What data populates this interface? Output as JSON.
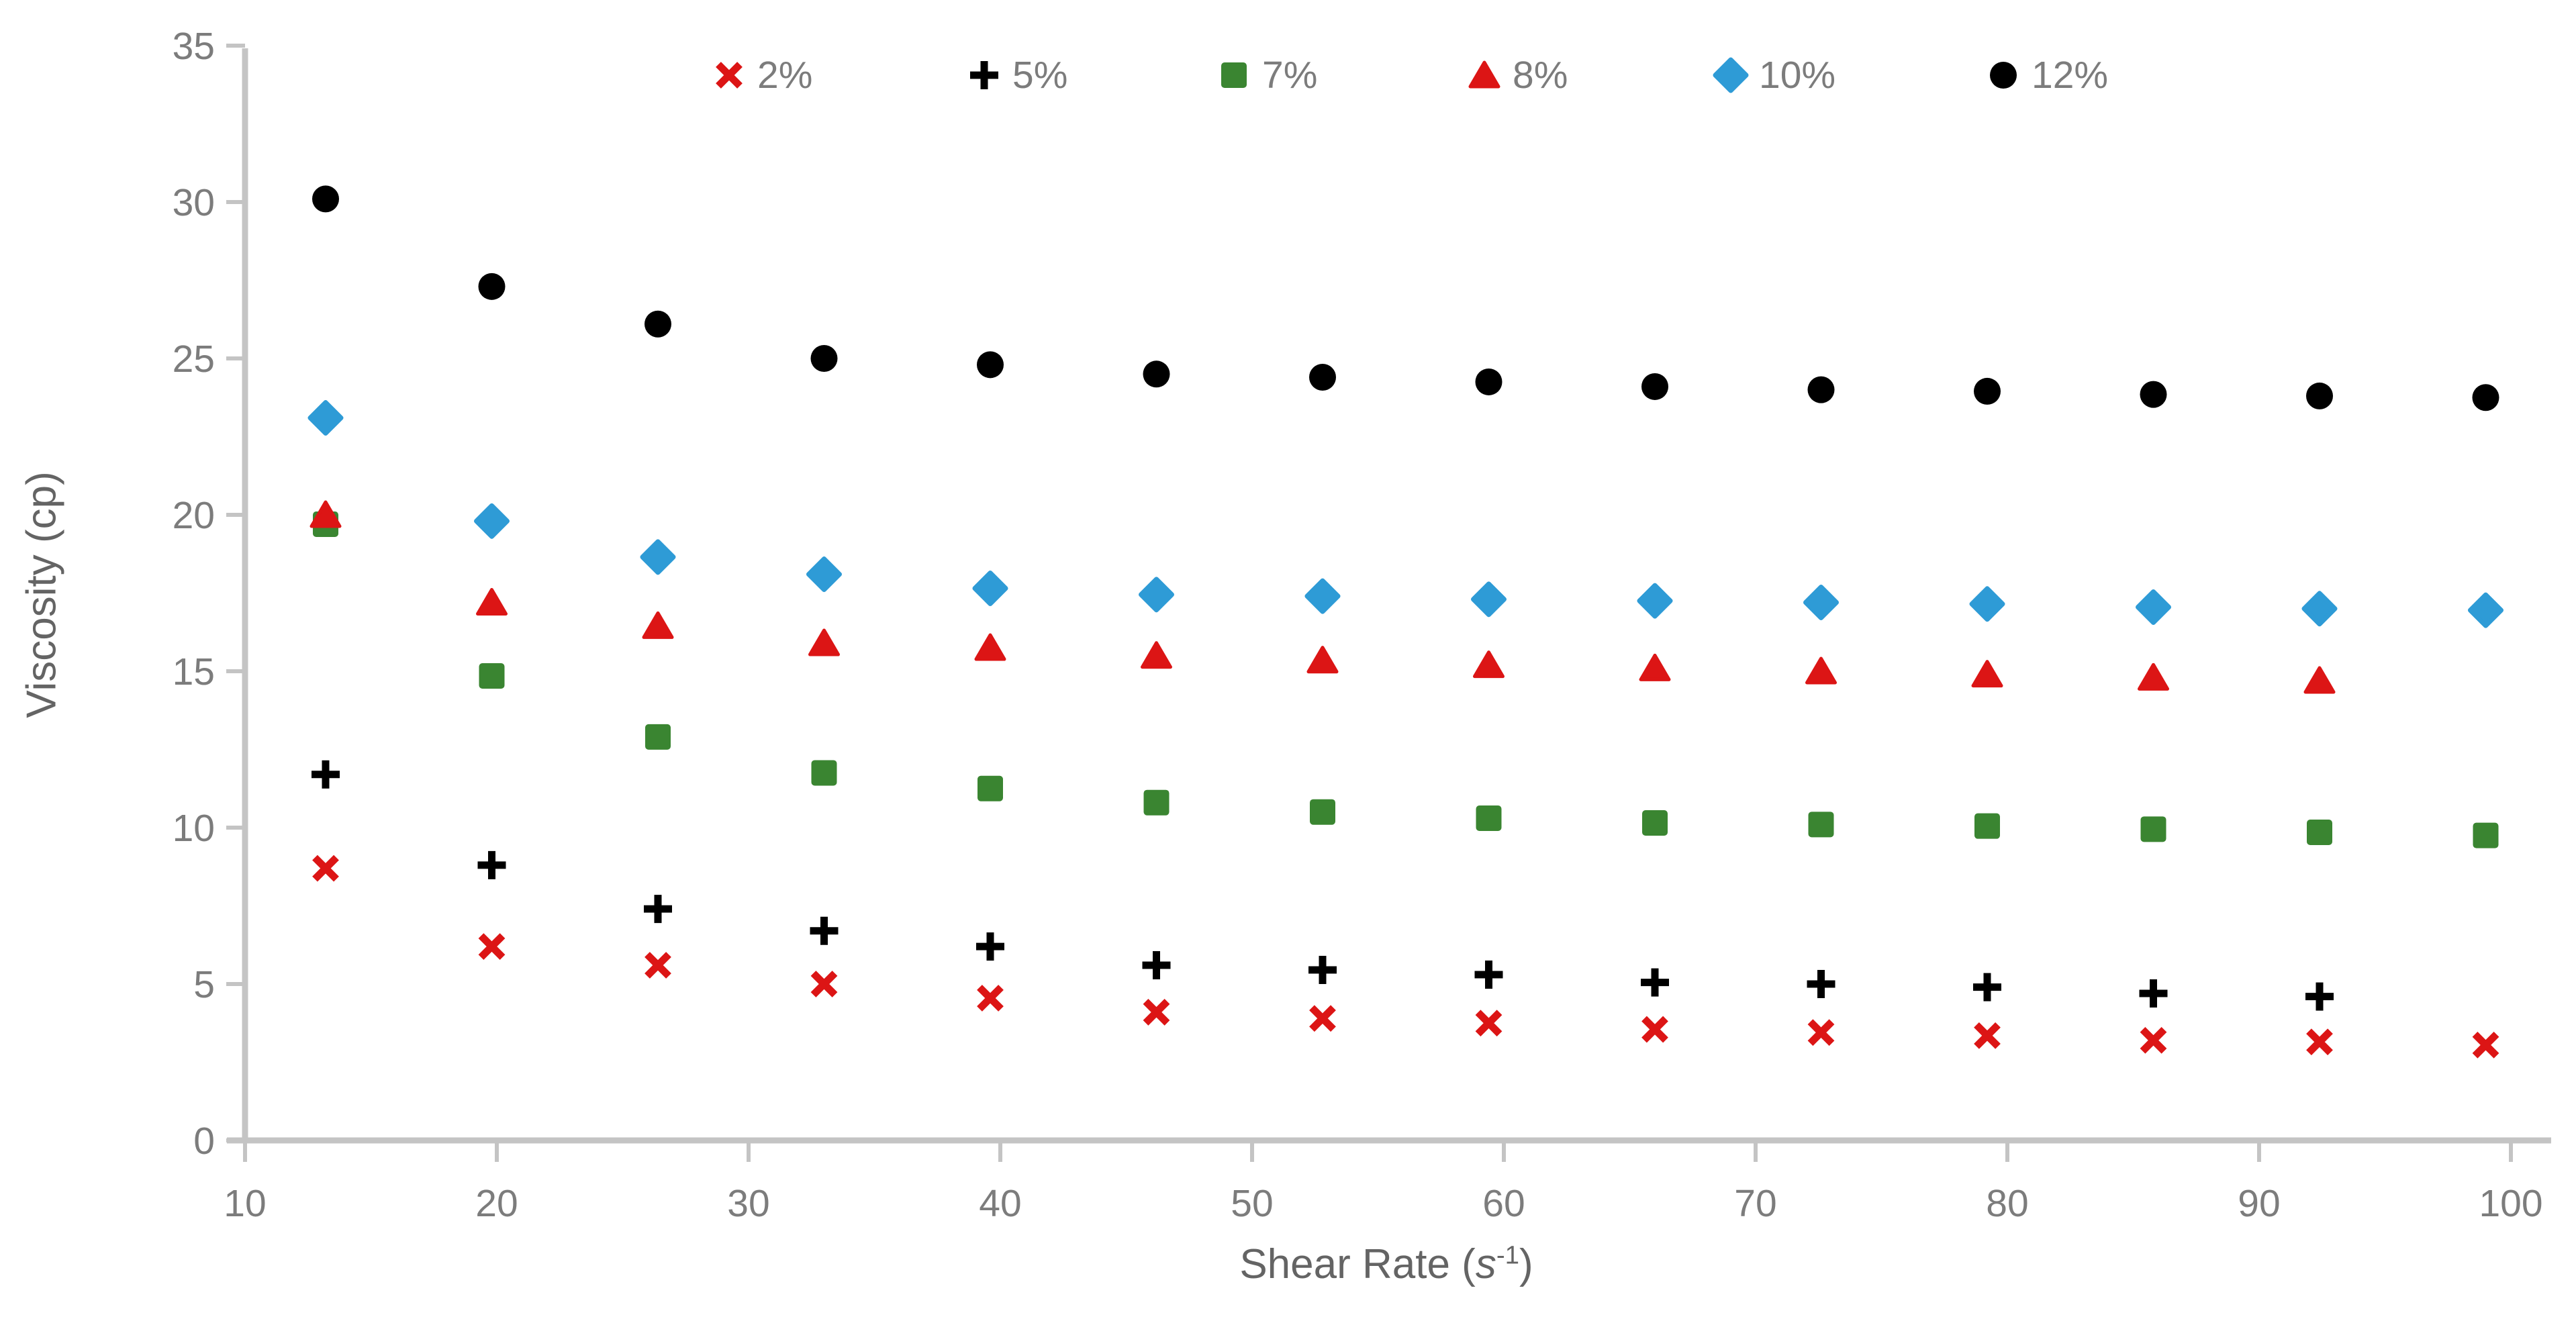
{
  "chart_data": {
    "type": "scatter",
    "title": "",
    "xlabel": "Shear Rate (s⁻¹)",
    "xlabel_parts": {
      "prefix": "Shear Rate (",
      "symbol": "s",
      "exponent": "-1",
      "suffix": ")"
    },
    "ylabel": "Viscosity (cp)",
    "xlim": [
      10,
      100
    ],
    "ylim": [
      0,
      35
    ],
    "xticks": [
      10,
      20,
      30,
      40,
      50,
      60,
      70,
      80,
      90,
      100
    ],
    "yticks": [
      0,
      5,
      10,
      15,
      20,
      25,
      30,
      35
    ],
    "grid": false,
    "legend_position": "top",
    "series": [
      {
        "name": "2%",
        "marker": "x",
        "color": "#dc1515",
        "x": [
          13.2,
          19.8,
          26.4,
          33,
          39.6,
          46.2,
          52.8,
          59.4,
          66,
          72.6,
          79.2,
          85.8,
          92.4,
          99
        ],
        "y": [
          8.7,
          6.2,
          5.6,
          5.0,
          4.55,
          4.1,
          3.9,
          3.75,
          3.55,
          3.45,
          3.35,
          3.2,
          3.15,
          3.05
        ]
      },
      {
        "name": "5%",
        "marker": "plus",
        "color": "#000000",
        "x": [
          13.2,
          19.8,
          26.4,
          33,
          39.6,
          46.2,
          52.8,
          59.4,
          66,
          72.6,
          79.2,
          85.8,
          92.4
        ],
        "y": [
          11.7,
          8.8,
          7.4,
          6.7,
          6.2,
          5.6,
          5.45,
          5.3,
          5.05,
          5.0,
          4.9,
          4.7,
          4.6
        ]
      },
      {
        "name": "7%",
        "marker": "square",
        "color": "#3a8531",
        "x": [
          13.2,
          19.8,
          26.4,
          33,
          39.6,
          46.2,
          52.8,
          59.4,
          66,
          72.6,
          79.2,
          85.8,
          92.4,
          99
        ],
        "y": [
          19.7,
          14.85,
          12.9,
          11.75,
          11.25,
          10.8,
          10.5,
          10.3,
          10.15,
          10.1,
          10.05,
          9.95,
          9.85,
          9.75
        ]
      },
      {
        "name": "8%",
        "marker": "triangle",
        "color": "#dc1515",
        "x": [
          13.2,
          19.8,
          26.4,
          33,
          39.6,
          46.2,
          52.8,
          59.4,
          66,
          72.6,
          79.2,
          85.8,
          92.4
        ],
        "y": [
          20.0,
          17.2,
          16.45,
          15.9,
          15.75,
          15.5,
          15.35,
          15.2,
          15.1,
          15.0,
          14.9,
          14.8,
          14.7
        ]
      },
      {
        "name": "10%",
        "marker": "diamond",
        "color": "#2e9bd6",
        "x": [
          13.2,
          19.8,
          26.4,
          33,
          39.6,
          46.2,
          52.8,
          59.4,
          66,
          72.6,
          79.2,
          85.8,
          92.4,
          99
        ],
        "y": [
          23.1,
          19.8,
          18.65,
          18.1,
          17.65,
          17.45,
          17.4,
          17.3,
          17.25,
          17.2,
          17.15,
          17.05,
          17.0,
          16.95
        ]
      },
      {
        "name": "12%",
        "marker": "circle",
        "color": "#000000",
        "x": [
          13.2,
          19.8,
          26.4,
          33,
          39.6,
          46.2,
          52.8,
          59.4,
          66,
          72.6,
          79.2,
          85.8,
          92.4,
          99
        ],
        "y": [
          30.1,
          27.3,
          26.1,
          25.0,
          24.8,
          24.5,
          24.4,
          24.25,
          24.1,
          24.0,
          23.95,
          23.85,
          23.8,
          23.75
        ]
      }
    ],
    "colors": {
      "axis_line": "#c4c4c4",
      "tick_text": "#7c7c7c",
      "axis_title_text": "#646464",
      "background": "#ffffff"
    }
  }
}
